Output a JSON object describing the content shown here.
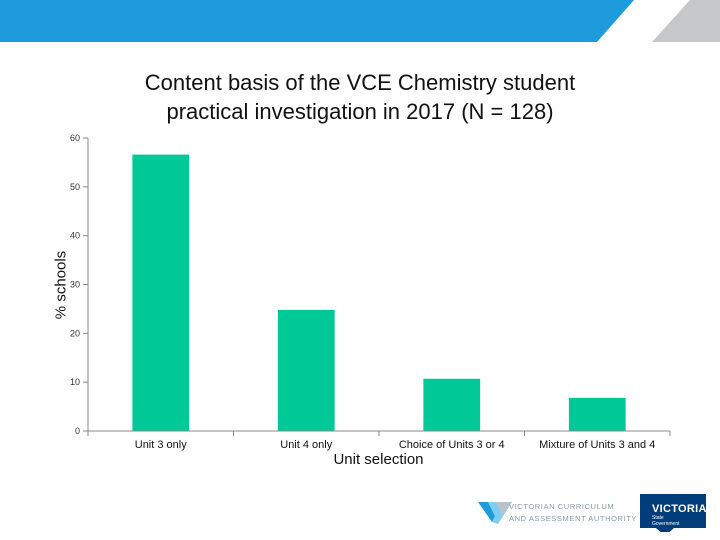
{
  "chart_data": {
    "type": "bar",
    "title_lines": [
      "Content basis of the VCE Chemistry student",
      "practical investigation in 2017 (N = 128)"
    ],
    "xlabel": "Unit selection",
    "ylabel": "% schools",
    "categories": [
      "Unit 3 only",
      "Unit 4 only",
      "Choice of Units 3 or 4",
      "Mixture of Units 3 and 4"
    ],
    "values": [
      56.6,
      24.8,
      10.7,
      6.8
    ],
    "ylim": [
      0,
      60
    ],
    "yticks": [
      "0",
      "10",
      "20",
      "30",
      "40",
      "50",
      "60"
    ],
    "bar_color": "#00c896",
    "grid": false,
    "legend": "none"
  },
  "footer": {
    "vcaa_line1": "VICTORIAN CURRICULUM",
    "vcaa_line2": "AND ASSESSMENT AUTHORITY",
    "victoria_name": "VICTORIA",
    "victoria_sub1": "State",
    "victoria_sub2": "Government"
  },
  "colors": {
    "banner_blue": "#1e9bdc",
    "banner_gray": "#c6c7c9",
    "bar": "#00c896"
  }
}
